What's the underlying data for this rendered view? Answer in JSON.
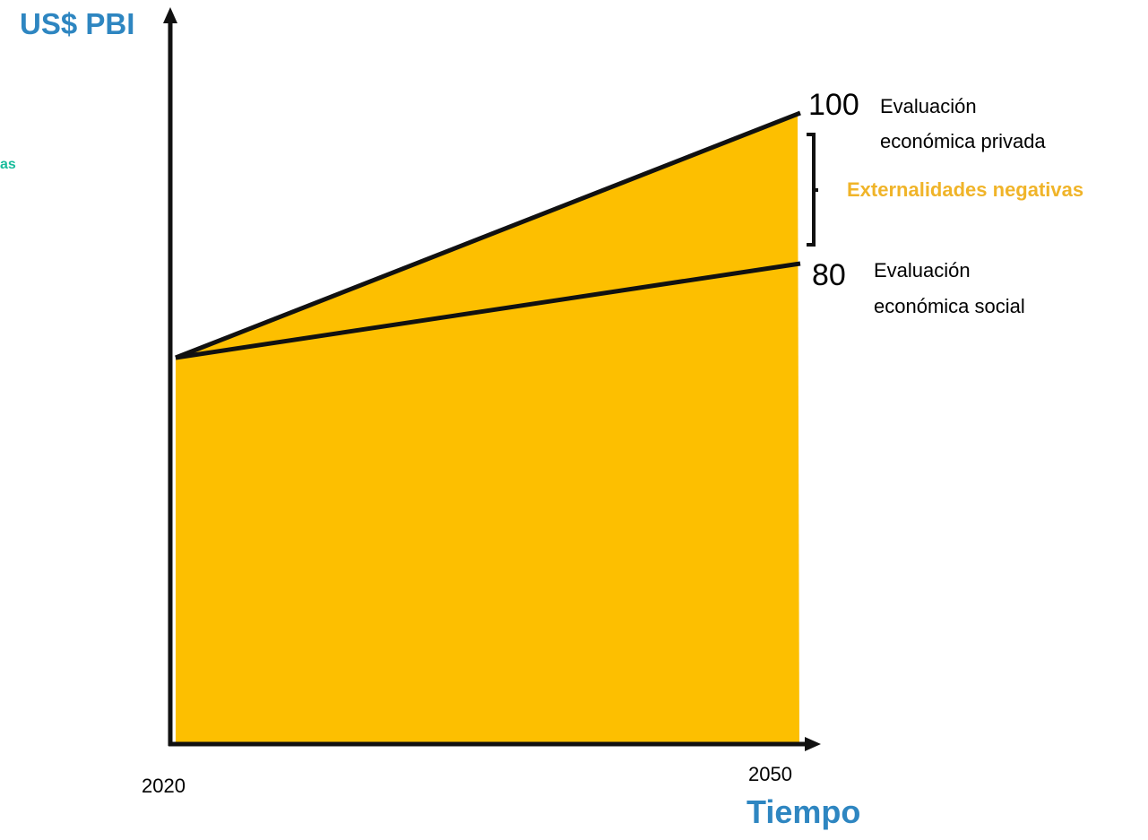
{
  "axes": {
    "y_label": "US$ PBI",
    "x_label": "Tiempo"
  },
  "cut_off_text": "as",
  "ticks": {
    "start": "2020",
    "end": "2050"
  },
  "values": {
    "private": "100",
    "social": "80"
  },
  "labels": {
    "private_line1": "Evaluación",
    "private_line2": "económica privada",
    "social_line1": "Evaluación",
    "social_line2": "económica social",
    "externalities": "Externalidades negativas"
  },
  "colors": {
    "fill": "#FDBF00",
    "axis_title": "#2E86C1",
    "externalities_text": "#F0B429",
    "cut_text": "#1ABC9C"
  },
  "chart_data": {
    "type": "area",
    "x": [
      2020,
      2050
    ],
    "series": [
      {
        "name": "Evaluación económica privada",
        "values": [
          null,
          100
        ]
      },
      {
        "name": "Evaluación económica social",
        "values": [
          null,
          80
        ]
      }
    ],
    "annotations": [
      "Externalidades negativas"
    ]
  }
}
